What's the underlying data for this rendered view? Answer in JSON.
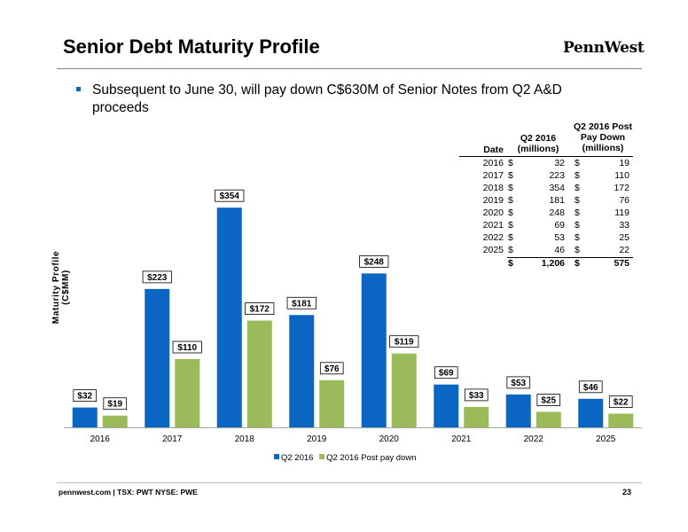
{
  "slide": {
    "title": "Senior Debt Maturity Profile",
    "logo": "PennWest",
    "bullet": "Subsequent to June 30, will pay down C$630M of Senior Notes from Q2 A&D proceeds",
    "footer": "pennwest.com | TSX: PWT  NYSE: PWE",
    "page_number": "23"
  },
  "colors": {
    "q2_2016": "#0b66c3",
    "post_paydown": "#9bbb59"
  },
  "chart_data": {
    "type": "bar",
    "ylabel": "Maturity Profile (C$MM)",
    "categories": [
      "2016",
      "2017",
      "2018",
      "2019",
      "2020",
      "2021",
      "2022",
      "2025"
    ],
    "series": [
      {
        "name": "Q2 2016",
        "values": [
          32,
          223,
          354,
          181,
          248,
          69,
          53,
          46
        ],
        "labels": [
          "$32",
          "$223",
          "$354",
          "$181",
          "$248",
          "$69",
          "$53",
          "$46"
        ]
      },
      {
        "name": "Q2 2016 Post pay down",
        "values": [
          19,
          110,
          172,
          76,
          119,
          33,
          25,
          22
        ],
        "labels": [
          "$19",
          "$110",
          "$172",
          "$76",
          "$119",
          "$33",
          "$25",
          "$22"
        ]
      }
    ],
    "ylim": [
      0,
      400
    ],
    "grid": false,
    "legend": "bottom"
  },
  "table": {
    "headers": {
      "date": "Date",
      "q2": "Q2 2016 (millions)",
      "post": "Q2 2016 Post Pay Down (millions)"
    },
    "rows": [
      {
        "date": "2016",
        "q2": "32",
        "post": "19"
      },
      {
        "date": "2017",
        "q2": "223",
        "post": "110"
      },
      {
        "date": "2018",
        "q2": "354",
        "post": "172"
      },
      {
        "date": "2019",
        "q2": "181",
        "post": "76"
      },
      {
        "date": "2020",
        "q2": "248",
        "post": "119"
      },
      {
        "date": "2021",
        "q2": "69",
        "post": "33"
      },
      {
        "date": "2022",
        "q2": "53",
        "post": "25"
      },
      {
        "date": "2025",
        "q2": "46",
        "post": "22"
      }
    ],
    "currency": "$",
    "total": {
      "q2": "1,206",
      "post": "575"
    }
  }
}
